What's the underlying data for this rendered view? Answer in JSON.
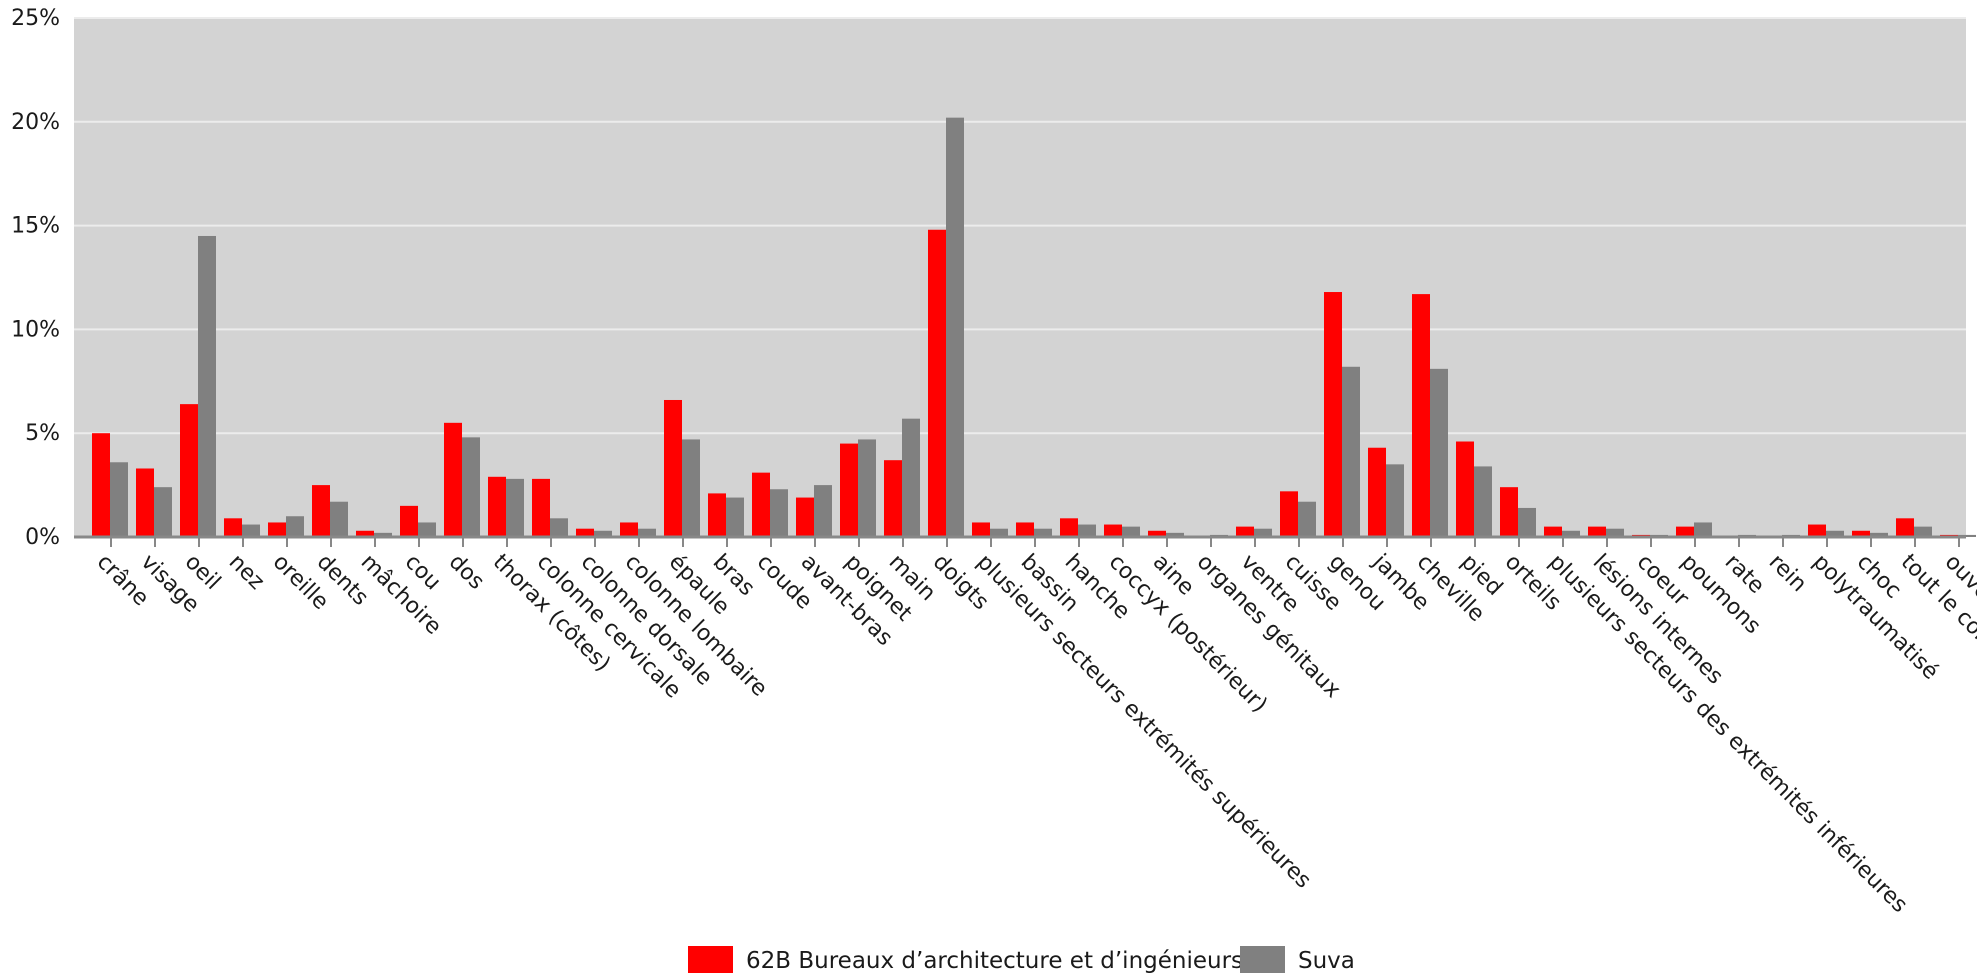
{
  "chart_data": {
    "type": "bar",
    "categories": [
      "crâne",
      "visage",
      "oeil",
      "nez",
      "oreille",
      "dents",
      "mâchoire",
      "cou",
      "dos",
      "thorax (côtes)",
      "colonne cervicale",
      "colonne dorsale",
      "colonne lombaire",
      "épaule",
      "bras",
      "coude",
      "avant-bras",
      "poignet",
      "main",
      "doigts",
      "plusieurs secteurs extrémités supérieures",
      "bassin",
      "hanche",
      "coccyx (postérieur)",
      "aine",
      "organes génitaux",
      "ventre",
      "cuisse",
      "genou",
      "jambe",
      "cheville",
      "pied",
      "orteils",
      "plusieurs secteurs des extrémités inférieures",
      "lésions internes",
      "coeur",
      "poumons",
      "rate",
      "rein",
      "polytraumatisé",
      "choc",
      "tout le corps",
      "ouvert"
    ],
    "series": [
      {
        "name": "62B Bureaux d’architecture et d’ingénieurs",
        "color": "#ff0000",
        "values": [
          5.0,
          3.3,
          6.4,
          0.9,
          0.7,
          2.5,
          0.3,
          1.5,
          5.5,
          2.9,
          2.8,
          0.4,
          0.7,
          6.6,
          2.1,
          3.1,
          1.9,
          4.5,
          3.7,
          14.8,
          0.7,
          0.7,
          0.9,
          0.6,
          0.3,
          0.0,
          0.5,
          2.2,
          11.8,
          4.3,
          11.7,
          4.6,
          2.4,
          0.5,
          0.5,
          0.1,
          0.5,
          0.0,
          0.0,
          0.6,
          0.3,
          0.9,
          0.1
        ]
      },
      {
        "name": "Suva",
        "color": "#808080",
        "values": [
          3.6,
          2.4,
          14.5,
          0.6,
          1.0,
          1.7,
          0.2,
          0.7,
          4.8,
          2.8,
          0.9,
          0.3,
          0.4,
          4.7,
          1.9,
          2.3,
          2.5,
          4.7,
          5.7,
          20.2,
          0.4,
          0.4,
          0.6,
          0.5,
          0.2,
          0.1,
          0.4,
          1.7,
          8.2,
          3.5,
          8.1,
          3.4,
          1.4,
          0.3,
          0.4,
          0.1,
          0.7,
          0.1,
          0.1,
          0.3,
          0.2,
          0.5,
          0.1
        ]
      }
    ],
    "y_ticks": [
      "0%",
      "5%",
      "10%",
      "15%",
      "20%",
      "25%"
    ],
    "ylim": [
      0,
      25
    ],
    "grid": true,
    "legend_position": "bottom-center",
    "plot_background": "#d3d3d3"
  }
}
